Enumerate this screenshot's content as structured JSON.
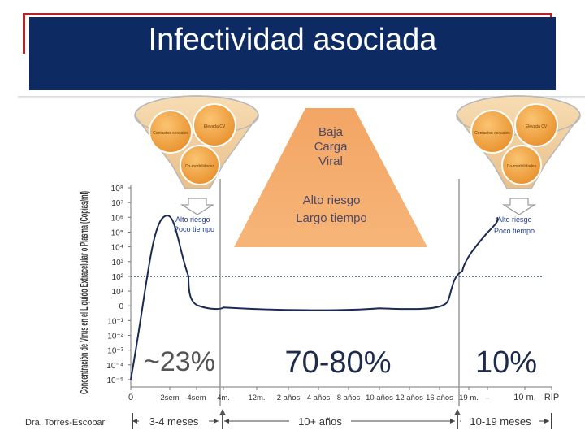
{
  "header": {
    "title": "Infectividad asociada"
  },
  "footer": {
    "author": "Dra. Torres-Escobar"
  },
  "funnels": {
    "left": {
      "item1": "Contactos sexuales",
      "item2": "Elevada CV",
      "item3": "Co-morbilidades",
      "label1": "Alto riesgo",
      "label2": "Poco tiempo"
    },
    "right": {
      "item1": "Contactos sexuales",
      "item2": "Elevada CV",
      "item3": "Co-morbilidades",
      "label1": "Alto riesgo",
      "label2": "Poco tiempo"
    }
  },
  "mountain": {
    "line1": "Baja",
    "line2": "Carga",
    "line3": "Viral",
    "line4": "Alto riesgo",
    "line5": "Largo  tiempo"
  },
  "phases": [
    {
      "percent": "~23%",
      "duration": "3-4 meses"
    },
    {
      "percent": "70-80%",
      "duration": "10+ años"
    },
    {
      "percent": "10%",
      "duration": "10-19 meses"
    }
  ],
  "colors": {
    "curve": "#1a2a55",
    "funnel_fill": "#f2cf9c",
    "circle_fill": "#f2a03a",
    "mountain_fill": "#f5a65a",
    "title_bg": "#0e2a63",
    "title_border": "#b0242b"
  },
  "chart_data": {
    "type": "line",
    "ylabel": "Concentración de Virus en el Líquido Extracelular o Plasma (Copias/ml)",
    "y_ticks": [
      "10⁸",
      "10⁷",
      "10⁶",
      "10⁵",
      "10⁴",
      "10³",
      "10²",
      "10¹",
      "0",
      "10⁻¹",
      "10⁻²",
      "10⁻³",
      "10⁻⁴",
      "10⁻⁵"
    ],
    "x_ticks": [
      "0",
      "2sem",
      "4sem",
      "4m.",
      "12m.",
      "2 años",
      "4 años",
      "8 años",
      "10 años",
      "12 años",
      "16 años",
      "19 m.",
      "–",
      "10 m.",
      "RIP"
    ],
    "threshold_level": "10²",
    "series": [
      {
        "points": [
          [
            "0",
            "10⁻⁵"
          ],
          [
            "2sem",
            "10⁶"
          ],
          [
            "4sem",
            "10²"
          ],
          [
            "4m.",
            "0"
          ],
          [
            "12m.",
            "0"
          ],
          [
            "4 años",
            "0"
          ],
          [
            "10 años",
            "0"
          ],
          [
            "16 años",
            "0"
          ],
          [
            "19 m.",
            "10³"
          ],
          [
            "10 m.",
            "10⁶"
          ]
        ]
      }
    ]
  }
}
